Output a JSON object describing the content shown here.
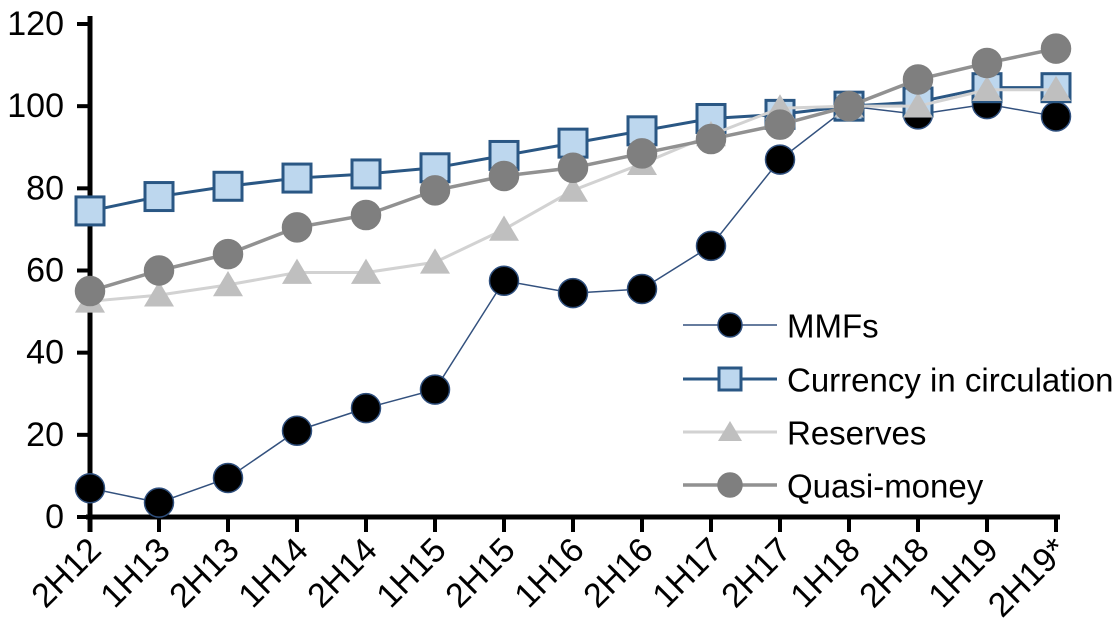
{
  "chart_data": {
    "type": "line",
    "title": "",
    "xlabel": "",
    "ylabel": "",
    "categories": [
      "2H12",
      "1H13",
      "2H13",
      "1H14",
      "2H14",
      "1H15",
      "2H15",
      "1H16",
      "2H16",
      "1H17",
      "2H17",
      "1H18",
      "2H18",
      "1H19",
      "2H19*"
    ],
    "series": [
      {
        "name": "MMFs",
        "marker": "circle",
        "marker_color": "#000000",
        "marker_edge_color": "#2f4f7d",
        "line_color": "#33517e",
        "line_width": 1.5,
        "values": [
          7,
          3.5,
          9.5,
          21,
          26.5,
          31,
          57.5,
          54.5,
          55.5,
          66,
          87,
          100,
          98,
          100.5,
          97.5
        ]
      },
      {
        "name": "Currency in circulation",
        "marker": "square",
        "marker_color": "#bdd7ee",
        "marker_edge_color": "#2a5784",
        "line_color": "#2a5784",
        "line_width": 3,
        "values": [
          74.5,
          78,
          80.5,
          82.5,
          83.5,
          85,
          88,
          91,
          94,
          97,
          98,
          100,
          101,
          104.5,
          104.5
        ]
      },
      {
        "name": "Reserves",
        "marker": "triangle",
        "marker_color": "#bfbfbf",
        "marker_edge_color": "#bfbfbf",
        "line_color": "#d2d2d2",
        "line_width": 3,
        "values": [
          52.5,
          54,
          56.5,
          59.5,
          59.5,
          62,
          70,
          79.5,
          86,
          93,
          99.5,
          100,
          100,
          104,
          104
        ]
      },
      {
        "name": "Quasi-money",
        "marker": "circle",
        "marker_color": "#7f7f7f",
        "marker_edge_color": "#7f7f7f",
        "line_color": "#919191",
        "line_width": 3.5,
        "values": [
          55,
          60,
          64,
          70.5,
          73.5,
          79.5,
          83,
          85,
          88.5,
          92,
          95.5,
          100,
          106.5,
          110.5,
          114
        ]
      }
    ],
    "yticks": [
      0,
      20,
      40,
      60,
      80,
      100,
      120
    ],
    "ylim": [
      0,
      120
    ],
    "x_label_rotation": -45,
    "grid": false,
    "legend_position": "middle-right",
    "axis_color": "#000000",
    "background_color": "#ffffff"
  }
}
